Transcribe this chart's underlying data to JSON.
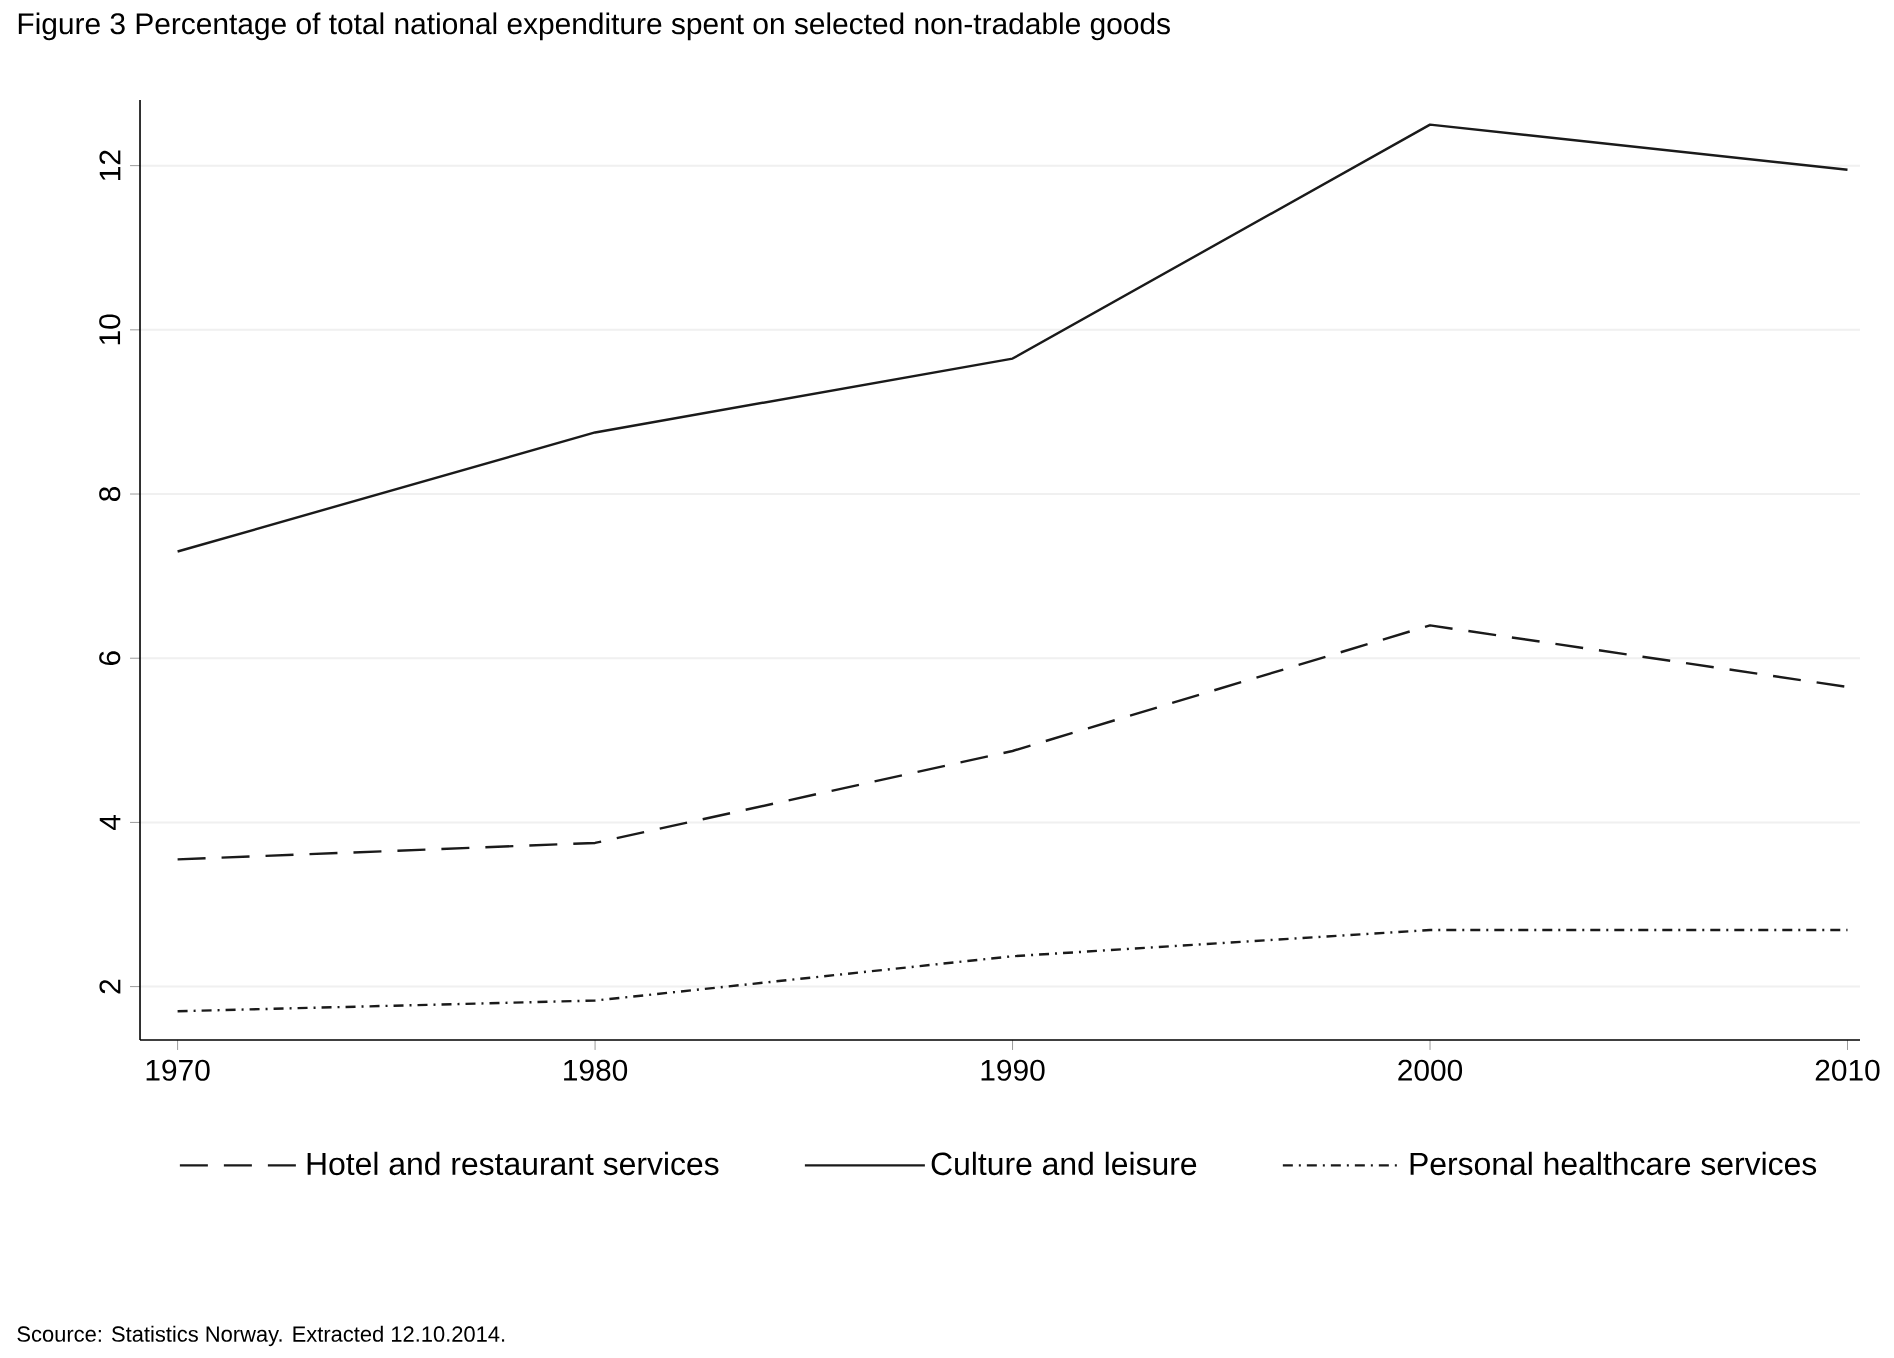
{
  "chart_data": {
    "type": "line",
    "title": "Figure 3  Percentage of total national expenditure spent on selected non-tradable goods",
    "x": [
      1970,
      1980,
      1990,
      2000,
      2010
    ],
    "series": [
      {
        "name": "Hotel and restaurant services",
        "color": "#1a1a1a",
        "line_style": "dashed",
        "values": [
          3.55,
          3.75,
          4.87,
          6.4,
          5.65
        ]
      },
      {
        "name": "Culture and leisure",
        "color": "#1a1a1a",
        "line_style": "solid",
        "values": [
          7.3,
          8.75,
          9.65,
          12.5,
          11.95
        ]
      },
      {
        "name": "Personal healthcare services",
        "color": "#1a1a1a",
        "line_style": "dotted",
        "values": [
          1.7,
          1.83,
          2.37,
          2.69,
          2.69
        ]
      }
    ],
    "xlim": [
      1969.1,
      2010.3
    ],
    "xticks": [
      1970,
      1980,
      1990,
      2000,
      2010
    ],
    "ylim": [
      1.35,
      12.8
    ],
    "yticks": [
      2,
      4,
      6,
      8,
      10,
      12
    ],
    "grid": "y",
    "legend": "bottom",
    "annotations": [
      "Scource: Statistics Norway. Extracted 12.10.2014."
    ]
  }
}
